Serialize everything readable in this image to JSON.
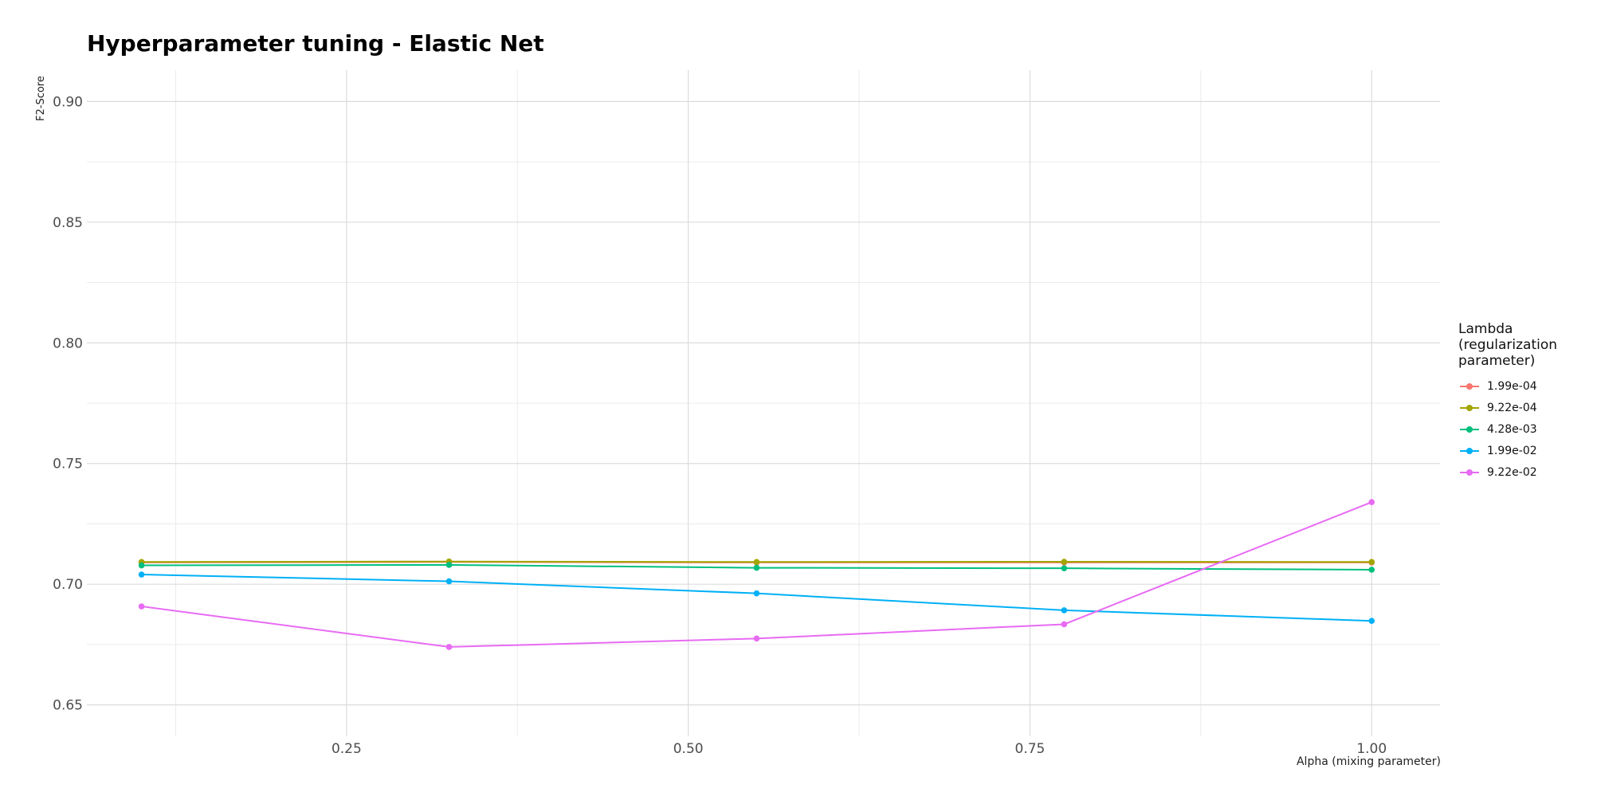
{
  "chart_data": {
    "type": "line",
    "title": "Hyperparameter tuning - Elastic Net",
    "xlabel": "Alpha (mixing parameter)",
    "ylabel": "F2-Score",
    "xlim": [
      0.06,
      1.05
    ],
    "ylim": [
      0.637,
      0.913
    ],
    "x_ticks": [
      0.25,
      0.5,
      0.75,
      1.0
    ],
    "x_tick_labels": [
      "0.25",
      "0.50",
      "0.75",
      "1.00"
    ],
    "y_ticks": [
      0.65,
      0.7,
      0.75,
      0.8,
      0.85,
      0.9
    ],
    "y_tick_labels": [
      "0.65",
      "0.70",
      "0.75",
      "0.80",
      "0.85",
      "0.90"
    ],
    "grid": true,
    "legend_title": "Lambda\n(regularization\nparameter)",
    "legend_position": "right",
    "x": [
      0.1,
      0.325,
      0.55,
      0.775,
      1.0
    ],
    "series": [
      {
        "name": "1.99e-04",
        "color": "#F8766D",
        "values": [
          0.709,
          0.7092,
          0.709,
          0.709,
          0.709
        ]
      },
      {
        "name": "9.22e-04",
        "color": "#A3A500",
        "values": [
          0.7092,
          0.7094,
          0.7092,
          0.7093,
          0.7092
        ]
      },
      {
        "name": "4.28e-03",
        "color": "#00BF7D",
        "values": [
          0.7078,
          0.708,
          0.7068,
          0.7066,
          0.706
        ]
      },
      {
        "name": "1.99e-02",
        "color": "#00B0F6",
        "values": [
          0.704,
          0.7012,
          0.6962,
          0.6892,
          0.6848
        ]
      },
      {
        "name": "9.22e-02",
        "color": "#E76BF3",
        "values": [
          0.6908,
          0.674,
          0.6775,
          0.6834,
          0.734
        ]
      }
    ]
  }
}
